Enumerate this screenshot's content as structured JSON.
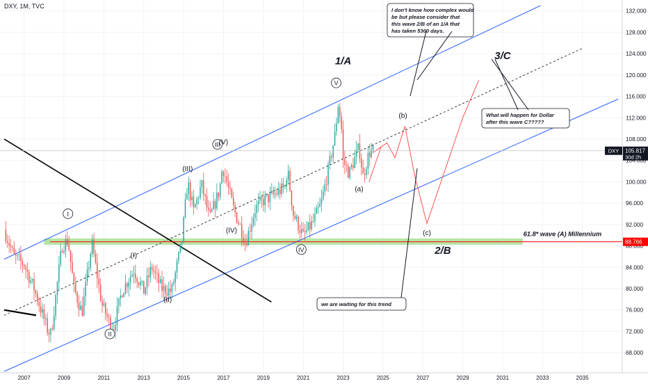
{
  "header": {
    "symbol_line": "DXY, 1M, TVC"
  },
  "price_tag": {
    "symbol": "DXY",
    "price": "105.817",
    "countdown": "30d 2h",
    "level": 105.817
  },
  "support_tag": {
    "price": "88.766",
    "level": 88.766
  },
  "colors": {
    "up": "#26a69a",
    "down": "#ef5350",
    "channel": "#2962ff",
    "trend": "#000000",
    "support": "#ff0000",
    "zone": "#b7e4a6",
    "projection": "#ff5252"
  },
  "chart_data": {
    "type": "candlestick",
    "xlabel": "",
    "ylabel": "",
    "x_range": [
      2006.0,
      2037.0
    ],
    "ylim": [
      64.5,
      133.0
    ],
    "x_ticks": [
      "2007",
      "2009",
      "2011",
      "2013",
      "2015",
      "2017",
      "2019",
      "2021",
      "2023",
      "2025",
      "2027",
      "2029",
      "2031",
      "2033",
      "2035"
    ],
    "x_tick_values": [
      2007,
      2009,
      2011,
      2013,
      2015,
      2017,
      2019,
      2021,
      2023,
      2025,
      2027,
      2029,
      2031,
      2033,
      2035
    ],
    "y_ticks": [
      "68.000",
      "72.000",
      "76.000",
      "80.000",
      "84.000",
      "88.000",
      "92.000",
      "96.000",
      "100.000",
      "104.000",
      "108.000",
      "112.000",
      "116.000",
      "120.000",
      "124.000",
      "128.000",
      "132.000"
    ],
    "y_tick_values": [
      68,
      72,
      76,
      80,
      84,
      88,
      92,
      96,
      100,
      104,
      108,
      112,
      116,
      120,
      124,
      128,
      132
    ],
    "price_path": [
      [
        2006.0,
        91.0
      ],
      [
        2006.5,
        86.0
      ],
      [
        2007.0,
        84.5
      ],
      [
        2007.5,
        80.0
      ],
      [
        2008.2,
        72.0
      ],
      [
        2008.35,
        71.5
      ],
      [
        2008.9,
        88.0
      ],
      [
        2009.2,
        89.0
      ],
      [
        2009.5,
        80.0
      ],
      [
        2009.9,
        75.5
      ],
      [
        2010.4,
        88.5
      ],
      [
        2010.9,
        77.0
      ],
      [
        2011.3,
        73.5
      ],
      [
        2011.5,
        72.9
      ],
      [
        2011.9,
        79.5
      ],
      [
        2012.5,
        83.5
      ],
      [
        2013.0,
        79.5
      ],
      [
        2013.4,
        84.0
      ],
      [
        2013.9,
        80.0
      ],
      [
        2014.4,
        79.5
      ],
      [
        2014.9,
        88.5
      ],
      [
        2015.2,
        100.0
      ],
      [
        2015.5,
        94.5
      ],
      [
        2015.9,
        99.5
      ],
      [
        2016.3,
        93.0
      ],
      [
        2016.8,
        98.5
      ],
      [
        2016.95,
        103.0
      ],
      [
        2017.5,
        95.0
      ],
      [
        2017.9,
        91.0
      ],
      [
        2018.1,
        88.5
      ],
      [
        2018.6,
        95.0
      ],
      [
        2019.0,
        96.5
      ],
      [
        2019.5,
        97.5
      ],
      [
        2020.1,
        99.0
      ],
      [
        2020.2,
        102.5
      ],
      [
        2020.5,
        94.0
      ],
      [
        2021.0,
        89.8
      ],
      [
        2021.5,
        92.5
      ],
      [
        2021.9,
        96.0
      ],
      [
        2022.3,
        103.0
      ],
      [
        2022.6,
        109.0
      ],
      [
        2022.75,
        114.5
      ],
      [
        2022.9,
        111.0
      ],
      [
        2023.0,
        104.0
      ],
      [
        2023.3,
        101.5
      ],
      [
        2023.8,
        106.5
      ],
      [
        2024.0,
        101.0
      ],
      [
        2024.3,
        105.5
      ],
      [
        2024.5,
        105.8
      ]
    ],
    "annotations": [
      {
        "label": "1/A",
        "x": 2023.0,
        "y": 122.0,
        "style": "big"
      },
      {
        "label": "3/C",
        "x": 2031.0,
        "y": 123.0,
        "style": "big"
      },
      {
        "label": "2/B",
        "x": 2028.0,
        "y": 86.5,
        "style": "big"
      },
      {
        "label": "V",
        "x": 2022.65,
        "y": 118.0,
        "style": "circle"
      },
      {
        "label": "III",
        "x": 2016.7,
        "y": 106.5,
        "style": "circle"
      },
      {
        "label": "I",
        "x": 2009.2,
        "y": 93.5,
        "style": "circle"
      },
      {
        "label": "II",
        "x": 2011.3,
        "y": 71.0,
        "style": "circle"
      },
      {
        "label": "IV",
        "x": 2020.9,
        "y": 86.8,
        "style": "circle"
      },
      {
        "label": "(III)",
        "x": 2015.2,
        "y": 102.0,
        "style": "plain"
      },
      {
        "label": "(V)",
        "x": 2017.0,
        "y": 107.0,
        "style": "plain"
      },
      {
        "label": "(IV)",
        "x": 2017.4,
        "y": 90.5,
        "style": "plain"
      },
      {
        "label": "(I)",
        "x": 2012.5,
        "y": 85.8,
        "style": "plain"
      },
      {
        "label": "(II)",
        "x": 2014.2,
        "y": 77.5,
        "style": "plain"
      },
      {
        "label": "(b)",
        "x": 2026.0,
        "y": 112.0,
        "style": "plain"
      },
      {
        "label": "(a)",
        "x": 2023.8,
        "y": 98.2,
        "style": "plain"
      },
      {
        "label": "(c)",
        "x": 2027.2,
        "y": 90.0,
        "style": "plain"
      },
      {
        "label": "61.8* wave (A) Millennium",
        "x": 2034.0,
        "y": 89.8,
        "style": "note"
      }
    ],
    "callouts": [
      {
        "text": "I don't know how complex would be but please consider that this wave 2/B of an 1/A that has taken 5300 days."
      },
      {
        "text": "What will happen for Dollar after this wave C?????"
      },
      {
        "text": "we are waiting for this trend"
      }
    ],
    "lines": {
      "channel_upper": [
        [
          2006.0,
          85.5
        ],
        [
          2032.9,
          133.0
        ]
      ],
      "channel_lower": [
        [
          2006.0,
          64.5
        ],
        [
          2036.8,
          115.5
        ]
      ],
      "channel_mid": [
        [
          2006.0,
          75.0
        ],
        [
          2035.0,
          125.0
        ]
      ],
      "downtrend": [
        [
          2006.0,
          108.0
        ],
        [
          2019.4,
          77.5
        ]
      ],
      "old_trend": [
        [
          2006.0,
          76.0
        ],
        [
          2007.6,
          75.0
        ]
      ],
      "support": [
        [
          2008.3,
          88.766
        ],
        [
          2037.0,
          88.766
        ]
      ],
      "zone": [
        [
          2008.0,
          88.2
        ],
        [
          2032.0,
          89.4
        ]
      ],
      "projection": [
        [
          2024.5,
          105.5
        ],
        [
          2025.2,
          107.3
        ],
        [
          2025.6,
          104.5
        ],
        [
          2026.1,
          110.4
        ],
        [
          2026.6,
          101.0
        ],
        [
          2027.2,
          92.2
        ],
        [
          2028.0,
          101.0
        ],
        [
          2029.0,
          112.0
        ],
        [
          2029.8,
          119.0
        ]
      ],
      "projection_short": [
        [
          2024.9,
          106.5
        ],
        [
          2024.3,
          100.0
        ]
      ]
    }
  }
}
